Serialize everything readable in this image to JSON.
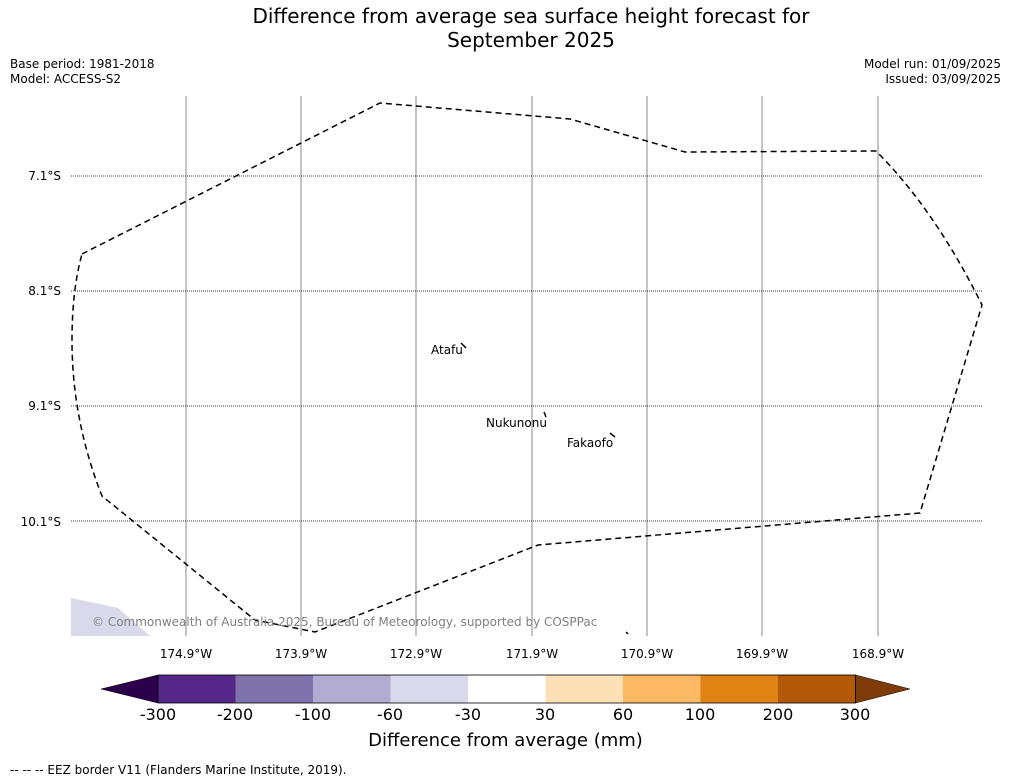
{
  "title_line1": "Difference from average sea surface height forecast for",
  "title_line2": "September 2025",
  "base_period": "Base period: 1981-2018",
  "model": "Model: ACCESS-S2",
  "model_run": "Model run: 01/09/2025",
  "issued": "Issued: 03/09/2025",
  "lat_labels": [
    "7.1°S",
    "8.1°S",
    "9.1°S",
    "10.1°S"
  ],
  "lon_labels": [
    "174.9°W",
    "173.9°W",
    "172.9°W",
    "171.9°W",
    "170.9°W",
    "169.9°W",
    "168.9°W"
  ],
  "places": [
    "Atafu",
    "Nukunonu",
    "Fakaofo"
  ],
  "copyright": "© Commonwealth of Australia 2025, Bureau of Meteorology, supported by COSPPac",
  "colorbar": {
    "tick_labels": [
      "-300",
      "-200",
      "-100",
      "-60",
      "-30",
      "30",
      "60",
      "100",
      "200",
      "300"
    ],
    "colors": [
      "#2d004b",
      "#542788",
      "#8073ac",
      "#b2abd2",
      "#d8daeb",
      "#ffffff",
      "#fee0b6",
      "#fdb863",
      "#e08214",
      "#b35806",
      "#7f3b08"
    ],
    "title": "Difference from average (mm)"
  },
  "footnote": "-- -- -- EEZ border V11 (Flanders Marine Institute, 2019)."
}
